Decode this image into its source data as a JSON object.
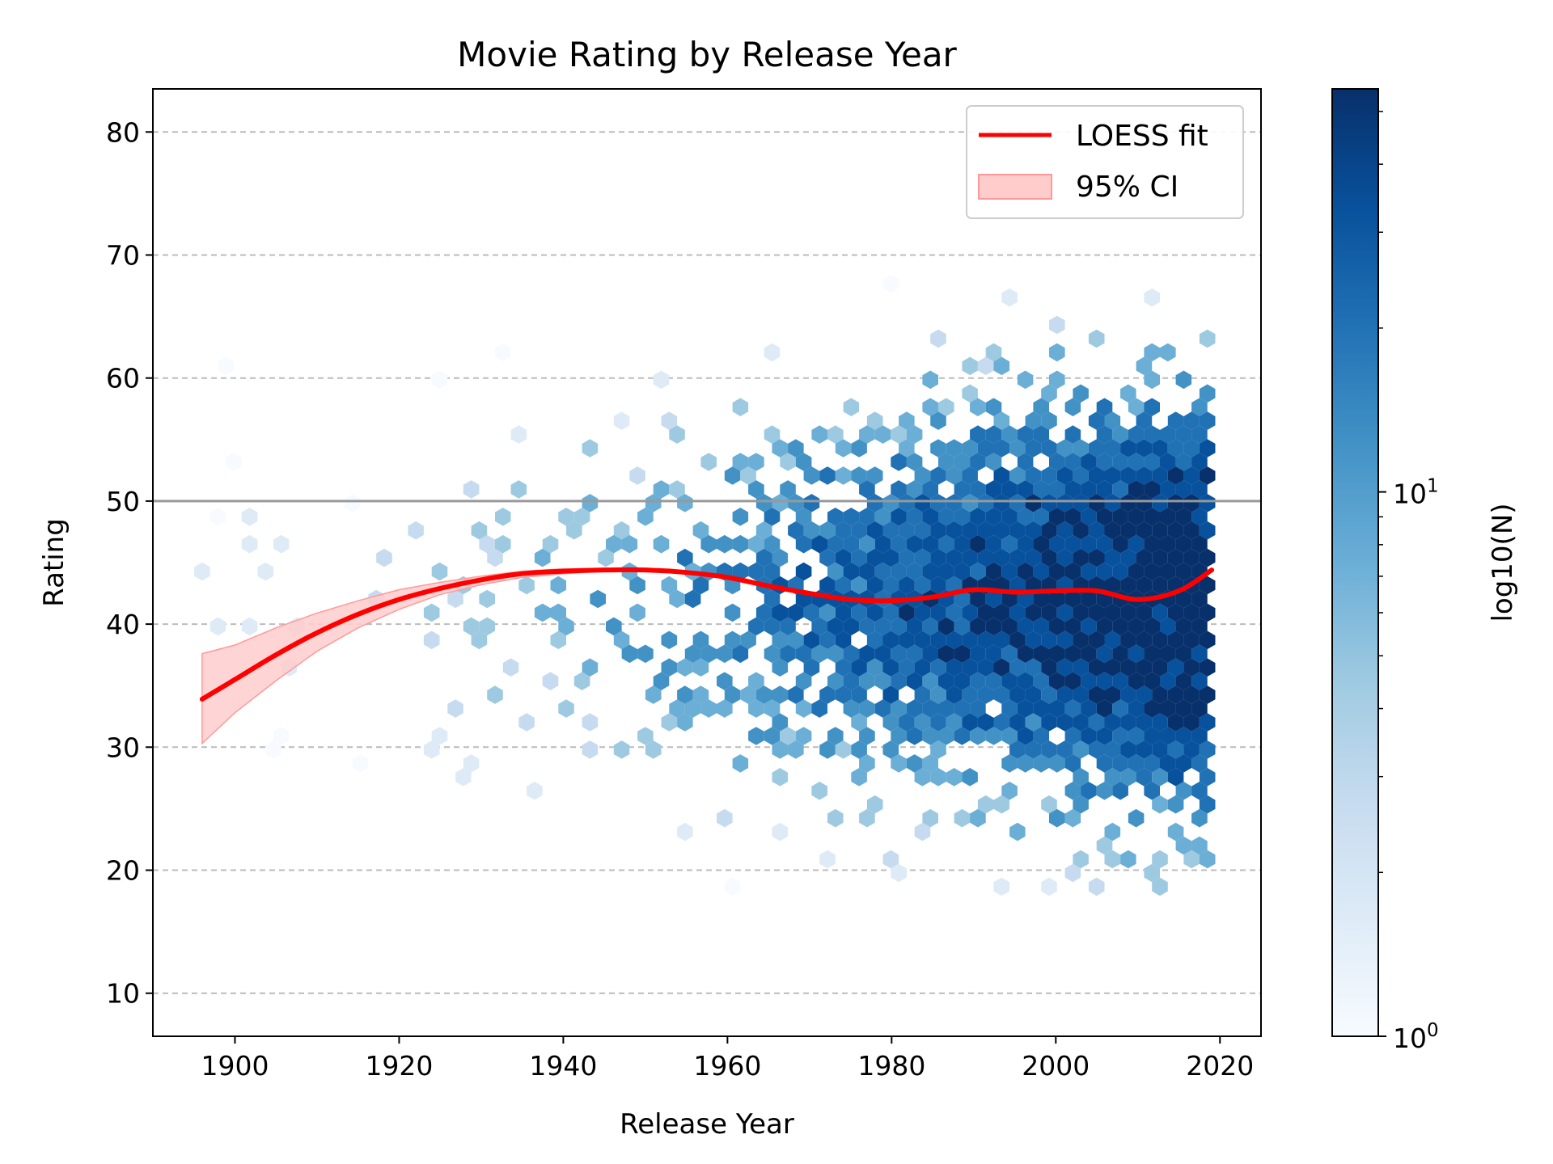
{
  "chart_data": {
    "type": "hexbin",
    "title": "Movie Rating by Release Year",
    "xlabel": "Release Year",
    "ylabel": "Rating",
    "xlim": [
      1890,
      2025
    ],
    "ylim": [
      6.5,
      83.5
    ],
    "xticks": [
      1900,
      1920,
      1940,
      1960,
      1980,
      2000,
      2020
    ],
    "yticks": [
      10,
      20,
      30,
      40,
      50,
      60,
      70,
      80
    ],
    "xtick_labels": [
      "1900",
      "1920",
      "1940",
      "1960",
      "1980",
      "2000",
      "2020"
    ],
    "ytick_labels": [
      "10",
      "20",
      "30",
      "40",
      "50",
      "60",
      "70",
      "80"
    ],
    "grid": "y-dashed",
    "reference_line": {
      "y": 50,
      "color": "#999999"
    },
    "legend": {
      "position": "top-right",
      "entries": [
        {
          "label": "LOESS fit",
          "kind": "line",
          "color": "#ff0000"
        },
        {
          "label": "95% CI",
          "kind": "patch",
          "color": "#ffcccc"
        }
      ]
    },
    "colorbar": {
      "label": "log10(N)",
      "scale": "log",
      "range": [
        1,
        55
      ],
      "major_ticks": [
        1,
        10
      ],
      "major_tick_labels": [
        "10",
        "10"
      ],
      "major_tick_exponents": [
        "0",
        "1"
      ],
      "colormap": "Blues"
    },
    "density": {
      "x_range": [
        1896,
        2019
      ],
      "y_range": [
        17,
        71
      ],
      "description_free": true
    },
    "loess_fit": {
      "color": "#ff0000",
      "x": [
        1896,
        1900,
        1905,
        1910,
        1915,
        1920,
        1925,
        1930,
        1935,
        1940,
        1945,
        1950,
        1955,
        1960,
        1965,
        1970,
        1975,
        1980,
        1985,
        1990,
        1995,
        2000,
        2005,
        2010,
        2015,
        2019
      ],
      "y": [
        33.9,
        35.5,
        37.5,
        39.3,
        40.8,
        42.0,
        42.9,
        43.6,
        44.1,
        44.3,
        44.4,
        44.4,
        44.2,
        43.8,
        43.1,
        42.5,
        42.0,
        41.9,
        42.2,
        42.8,
        42.6,
        42.7,
        42.7,
        42.0,
        42.7,
        44.4
      ]
    },
    "ci_band": {
      "color": "#ffcccc",
      "x": [
        1896,
        1900,
        1905,
        1910,
        1915,
        1920,
        1925,
        1930,
        1935,
        1940,
        1945
      ],
      "lower": [
        30.3,
        32.8,
        35.4,
        37.8,
        39.7,
        41.2,
        42.4,
        43.2,
        43.8,
        44.1,
        44.3
      ],
      "upper": [
        37.6,
        38.3,
        39.7,
        40.9,
        41.9,
        42.8,
        43.4,
        43.9,
        44.3,
        44.5,
        44.5
      ]
    }
  }
}
